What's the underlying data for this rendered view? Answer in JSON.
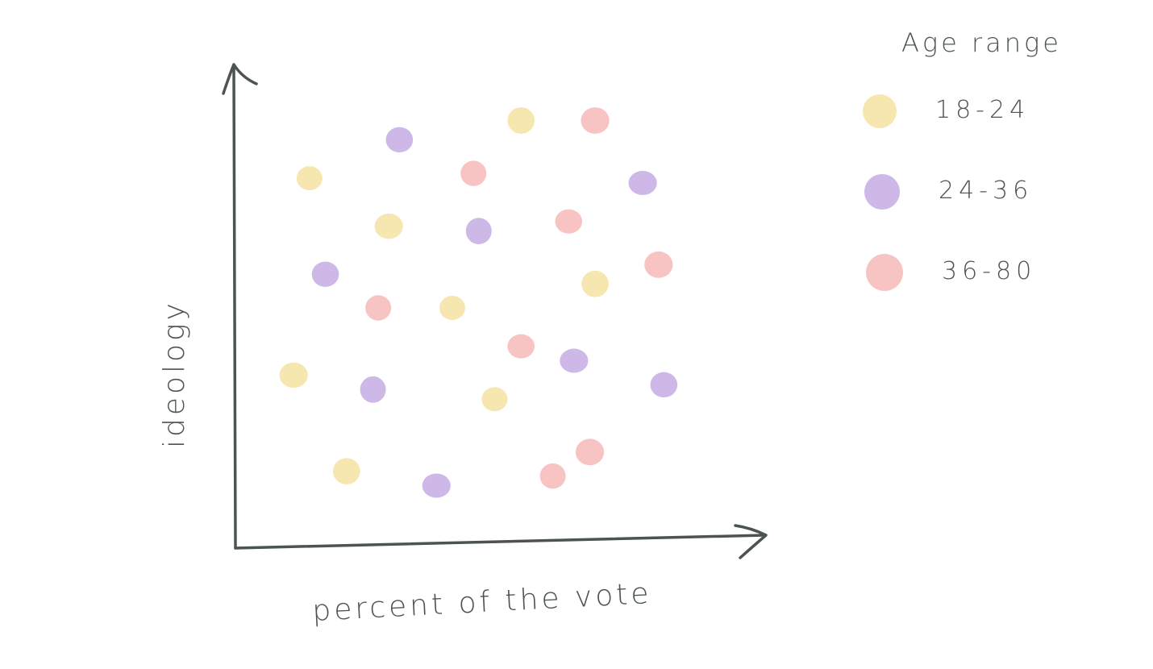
{
  "chart_data": {
    "type": "scatter",
    "xlabel": "percent of the vote",
    "ylabel": "ideology",
    "legend": {
      "title": "Age range",
      "placement": "right",
      "entries": [
        {
          "label": "18-24",
          "color": "#f6e7b0"
        },
        {
          "label": "24-36",
          "color": "#cdb8e8"
        },
        {
          "label": "36-80",
          "color": "#f8c3c3"
        }
      ]
    },
    "axis_ticks": false,
    "grid": false,
    "series": [
      {
        "name": "18-24",
        "color": "#f6e7b0",
        "points": [
          {
            "x": 14,
            "y": 77
          },
          {
            "x": 54,
            "y": 89
          },
          {
            "x": 29,
            "y": 67
          },
          {
            "x": 41,
            "y": 50
          },
          {
            "x": 68,
            "y": 55
          },
          {
            "x": 11,
            "y": 36
          },
          {
            "x": 49,
            "y": 31
          },
          {
            "x": 21,
            "y": 16
          }
        ]
      },
      {
        "name": "24-36",
        "color": "#cdb8e8",
        "points": [
          {
            "x": 31,
            "y": 85
          },
          {
            "x": 77,
            "y": 76
          },
          {
            "x": 46,
            "y": 66
          },
          {
            "x": 17,
            "y": 57
          },
          {
            "x": 64,
            "y": 39
          },
          {
            "x": 26,
            "y": 33
          },
          {
            "x": 81,
            "y": 34
          },
          {
            "x": 38,
            "y": 13
          }
        ]
      },
      {
        "name": "36-80",
        "color": "#f8c3c3",
        "points": [
          {
            "x": 68,
            "y": 89
          },
          {
            "x": 45,
            "y": 78
          },
          {
            "x": 63,
            "y": 68
          },
          {
            "x": 80,
            "y": 59
          },
          {
            "x": 27,
            "y": 50
          },
          {
            "x": 54,
            "y": 42
          },
          {
            "x": 67,
            "y": 20
          },
          {
            "x": 60,
            "y": 15
          }
        ]
      }
    ],
    "xlim": [
      0,
      100
    ],
    "ylim": [
      0,
      100
    ]
  }
}
